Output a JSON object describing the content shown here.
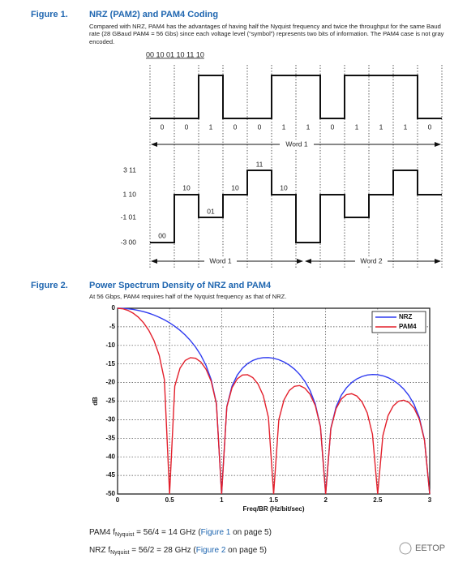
{
  "figure1": {
    "label": "Figure 1.",
    "title": "NRZ (PAM2) and PAM4 Coding",
    "description": "Compared with NRZ, PAM4 has the advantages of having half the Nyquist frequency and twice the throughput for the same Baud rate (28 GBaud PAM4 = 56 Gbs) since each voltage level (“symbol”) represents two bits of information. The PAM4 case is not gray encoded.",
    "bits": "00 10 01 10 11 10",
    "bit_labels": [
      "0",
      "0",
      "1",
      "0",
      "0",
      "1",
      "1",
      "0",
      "1",
      "1",
      "1",
      "0"
    ],
    "nrz_word_label": "Word 1",
    "levels": [
      "3 11",
      "1 10",
      "-1 01",
      "-3 00"
    ],
    "symbol_labels": [
      "00",
      "10",
      "01",
      "10",
      "11",
      "10"
    ],
    "pam4_word_labels": [
      "Word 1",
      "Word 2"
    ]
  },
  "figure2": {
    "label": "Figure 2.",
    "title": "Power Spectrum Density of NRZ and PAM4",
    "description": "At 56 Gbps, PAM4 requires half of the Nyquist frequency as that of NRZ."
  },
  "chart_data": {
    "type": "line",
    "xlabel": "Freq/BR (Hz/bit/sec)",
    "ylabel": "dB",
    "x": [
      0,
      0.05,
      0.1,
      0.15,
      0.2,
      0.25,
      0.3,
      0.35,
      0.4,
      0.45,
      0.5,
      0.55,
      0.6,
      0.65,
      0.7,
      0.75,
      0.8,
      0.85,
      0.9,
      0.95,
      1,
      1.05,
      1.1,
      1.15,
      1.2,
      1.25,
      1.3,
      1.35,
      1.4,
      1.45,
      1.5,
      1.55,
      1.6,
      1.65,
      1.7,
      1.75,
      1.8,
      1.85,
      1.9,
      1.95,
      2,
      2.05,
      2.1,
      2.15,
      2.2,
      2.25,
      2.3,
      2.35,
      2.4,
      2.45,
      2.5,
      2.55,
      2.6,
      2.65,
      2.7,
      2.75,
      2.8,
      2.85,
      2.9,
      2.95,
      3
    ],
    "series": [
      {
        "name": "NRZ",
        "color": "#2f3bf0",
        "values": [
          0,
          -0.04,
          -0.14,
          -0.32,
          -0.58,
          -0.91,
          -1.33,
          -1.83,
          -2.42,
          -3.12,
          -3.92,
          -4.86,
          -5.94,
          -7.2,
          -8.69,
          -10.45,
          -12.62,
          -15.39,
          -19.23,
          -25.61,
          -50,
          -26.48,
          -20.97,
          -18.02,
          -16.14,
          -14.89,
          -14.06,
          -13.55,
          -13.3,
          -13.28,
          -13.46,
          -13.86,
          -14.46,
          -15.3,
          -16.39,
          -17.81,
          -19.66,
          -22.15,
          -25.72,
          -31.86,
          -50,
          -32.29,
          -26.59,
          -23.45,
          -21.41,
          -20,
          -19.02,
          -18.37,
          -17.98,
          -17.83,
          -17.9,
          -18.18,
          -18.68,
          -19.41,
          -20.41,
          -21.74,
          -23.5,
          -25.9,
          -29.39,
          -35.45,
          -50
        ]
      },
      {
        "name": "PAM4",
        "color": "#e3202c",
        "values": [
          0,
          -0.14,
          -0.58,
          -1.33,
          -2.42,
          -3.92,
          -5.94,
          -8.69,
          -12.62,
          -19.23,
          -50,
          -20.97,
          -16.14,
          -14.06,
          -13.3,
          -13.46,
          -14.46,
          -16.39,
          -19.66,
          -25.72,
          -50,
          -26.59,
          -21.41,
          -19.02,
          -17.98,
          -17.9,
          -18.68,
          -20.41,
          -23.5,
          -29.39,
          -50,
          -29.97,
          -24.66,
          -22.15,
          -21.01,
          -20.82,
          -21.51,
          -23.15,
          -26.15,
          -31.96,
          -50,
          -32.4,
          -27.02,
          -24.45,
          -23.25,
          -23.01,
          -23.63,
          -25.23,
          -28.18,
          -33.95,
          -50,
          -34.29,
          -28.88,
          -26.27,
          -25.03,
          -24.75,
          -25.34,
          -26.9,
          -29.83,
          -35.56,
          -50
        ]
      }
    ],
    "xlim": [
      0,
      3
    ],
    "ylim": [
      -50,
      0
    ],
    "xticks": [
      0,
      0.5,
      1,
      1.5,
      2,
      2.5,
      3
    ],
    "yticks": [
      0,
      -5,
      -10,
      -15,
      -20,
      -25,
      -30,
      -35,
      -40,
      -45,
      -50
    ],
    "grid": true,
    "legend": "upper right"
  },
  "formulas": [
    {
      "prefix": "PAM4 f",
      "sub": "Nyquist",
      "expr": " = 56/4 = 14 GHz (",
      "link": "Figure 1",
      "suffix": " on page 5)"
    },
    {
      "prefix": "NRZ f",
      "sub": "Nyquist",
      "expr": " = 56/2 = 28 GHz (",
      "link": "Figure 2",
      "suffix": " on page 5)"
    }
  ],
  "watermark": "EETOP"
}
